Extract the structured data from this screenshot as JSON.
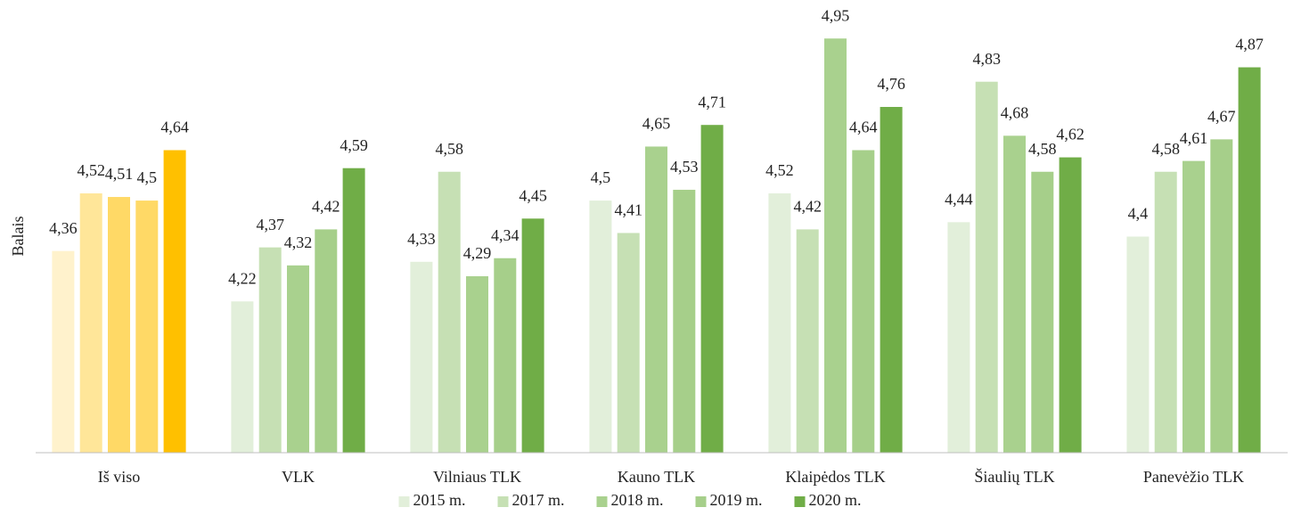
{
  "chart_data": {
    "type": "bar",
    "y_label": "Balais",
    "categories": [
      "Iš viso",
      "VLK",
      "Vilniaus TLK",
      "Kauno TLK",
      "Klaipėdos TLK",
      "Šiaulių TLK",
      "Panevėžio TLK"
    ],
    "series": [
      {
        "name": "2015 m.",
        "color": "#e2efda",
        "colors": [
          "#fff2cc",
          "#e2efda",
          "#e2efda",
          "#e2efda",
          "#e2efda",
          "#e2efda",
          "#e2efda"
        ],
        "values": [
          4.36,
          4.22,
          4.33,
          4.5,
          4.52,
          4.44,
          4.4
        ],
        "value_labels": [
          "4,36",
          "4,22",
          "4,33",
          "4,5",
          "4,52",
          "4,44",
          "4,4"
        ]
      },
      {
        "name": "2017 m.",
        "color": "#c6e0b4",
        "colors": [
          "#ffe699",
          "#c6e0b4",
          "#c6e0b4",
          "#c6e0b4",
          "#c6e0b4",
          "#c6e0b4",
          "#c6e0b4"
        ],
        "values": [
          4.52,
          4.37,
          4.58,
          4.41,
          4.42,
          4.83,
          4.58
        ],
        "value_labels": [
          "4,52",
          "4,37",
          "4,58",
          "4,41",
          "4,42",
          "4,83",
          "4,58"
        ]
      },
      {
        "name": "2018 m.",
        "color": "#a9d18e",
        "colors": [
          "#ffd966",
          "#a9d18e",
          "#a9d18e",
          "#a9d18e",
          "#a9d18e",
          "#a9d18e",
          "#a9d18e"
        ],
        "values": [
          4.51,
          4.32,
          4.29,
          4.65,
          4.95,
          4.68,
          4.61
        ],
        "value_labels": [
          "4,51",
          "4,32",
          "4,29",
          "4,65",
          "4,95",
          "4,68",
          "4,61"
        ]
      },
      {
        "name": "2019 m.",
        "color": "#a6cf8a",
        "colors": [
          "#ffd966",
          "#a6cf8a",
          "#a6cf8a",
          "#a6cf8a",
          "#a6cf8a",
          "#a6cf8a",
          "#a6cf8a"
        ],
        "values": [
          4.5,
          4.42,
          4.34,
          4.53,
          4.64,
          4.58,
          4.67
        ],
        "value_labels": [
          "4,5",
          "4,42",
          "4,34",
          "4,53",
          "4,64",
          "4,58",
          "4,67"
        ]
      },
      {
        "name": "2020 m.",
        "color": "#70ad47",
        "colors": [
          "#ffc000",
          "#70ad47",
          "#70ad47",
          "#70ad47",
          "#70ad47",
          "#70ad47",
          "#70ad47"
        ],
        "values": [
          4.64,
          4.59,
          4.45,
          4.71,
          4.76,
          4.62,
          4.87
        ],
        "value_labels": [
          "4,64",
          "4,59",
          "4,45",
          "4,71",
          "4,76",
          "4,62",
          "4,87"
        ]
      }
    ],
    "ylim": [
      3.8,
      5.0
    ],
    "legend": "bottom"
  }
}
